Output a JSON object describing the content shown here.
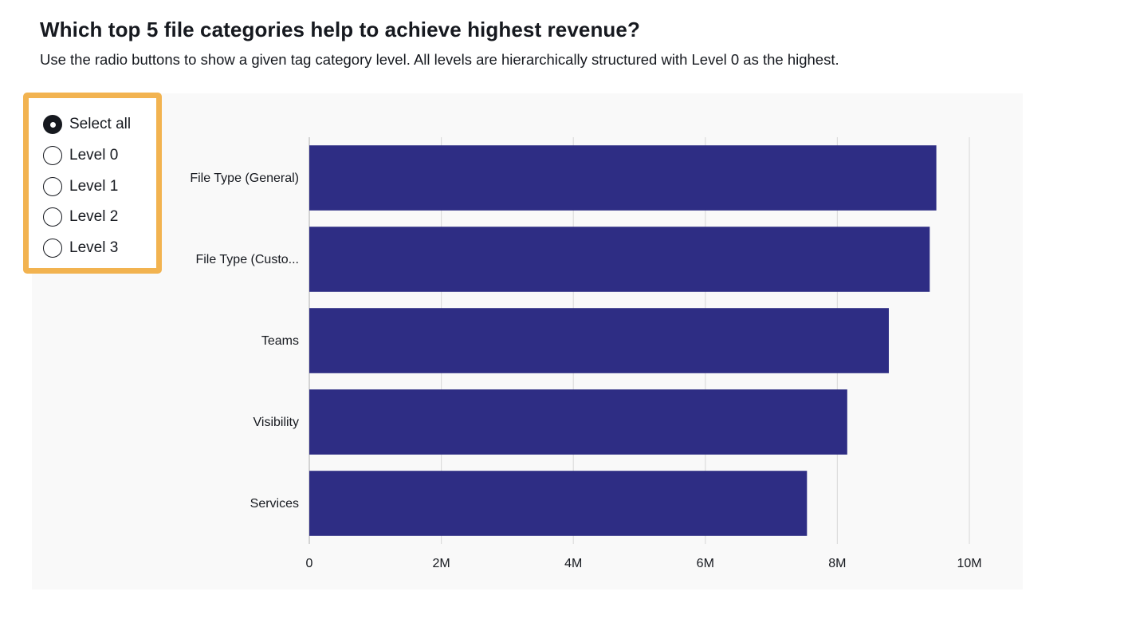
{
  "header": {
    "title": "Which top 5 file categories help to achieve highest revenue?",
    "subtitle": "Use the radio buttons to show a given tag category level. All levels are hierarchically structured with Level 0 as the highest."
  },
  "filter": {
    "options": [
      {
        "label": "Select all",
        "checked": true
      },
      {
        "label": "Level 0",
        "checked": false
      },
      {
        "label": "Level 1",
        "checked": false
      },
      {
        "label": "Level 2",
        "checked": false
      },
      {
        "label": "Level 3",
        "checked": false
      }
    ],
    "border_color": "#f2b350"
  },
  "chart_data": {
    "type": "bar",
    "orientation": "horizontal",
    "categories": [
      "File Type (General)",
      "File Type (Custo...",
      "Teams",
      "Visibility",
      "Services"
    ],
    "values": [
      9500000,
      9400000,
      8780000,
      8150000,
      7540000
    ],
    "xlim": [
      0,
      10000000
    ],
    "xticks": [
      {
        "value": 0,
        "label": "0"
      },
      {
        "value": 2000000,
        "label": "2M"
      },
      {
        "value": 4000000,
        "label": "4M"
      },
      {
        "value": 6000000,
        "label": "6M"
      },
      {
        "value": 8000000,
        "label": "8M"
      },
      {
        "value": 10000000,
        "label": "10M"
      }
    ],
    "grid": true,
    "bar_color": "#2e2d84",
    "background_color": "#f9f9f9"
  }
}
